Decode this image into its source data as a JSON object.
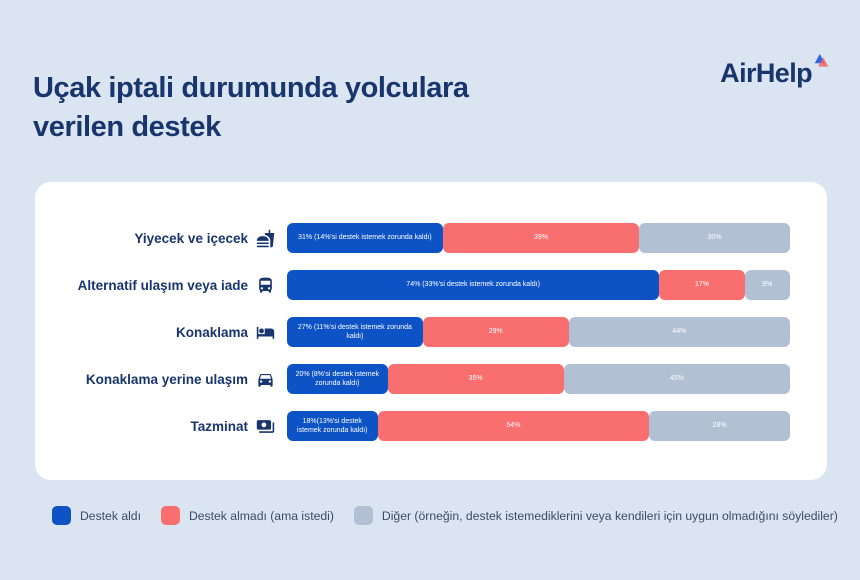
{
  "header": {
    "title": "Uçak iptali durumunda yolculara verilen destek",
    "brand": "AirHelp"
  },
  "colors": {
    "background": "#DBE5F1",
    "card": "#FFFFFF",
    "navy": "#19356E",
    "blue": "#0E53C6",
    "pink": "#F96F6F",
    "gray": "#B1C0D3",
    "legend_text": "#3C4B68"
  },
  "chart_data": {
    "type": "bar",
    "variant": "horizontal-stacked",
    "title": "Uçak iptali durumunda yolculara verilen destek",
    "unit": "%",
    "xlim": [
      0,
      100
    ],
    "grid": false,
    "legend_position": "bottom",
    "categories": [
      "Yiyecek ve içecek",
      "Alternatif ulaşım veya iade",
      "Konaklama",
      "Konaklama yerine ulaşım",
      "Tazminat"
    ],
    "category_icons": [
      "food-drink-icon",
      "bus-icon",
      "bed-icon",
      "car-icon",
      "banknote-icon"
    ],
    "series": [
      {
        "name": "Destek aldı",
        "color": "#0E53C6",
        "values": [
          31,
          74,
          27,
          20,
          18
        ],
        "bar_labels": [
          "31% (14%'si destek istemek zorunda kaldı)",
          "74% (33%'si destek istemek zorunda kaldı)",
          "27% (11%'si destek istemek zorunda kaldı)",
          "20% (8%'si destek istemek zorunda kaldı)",
          "18%(13%'si destek istemek zorunda kaldı)"
        ]
      },
      {
        "name": "Destek almadı (ama istedi)",
        "color": "#F96F6F",
        "values": [
          39,
          17,
          29,
          35,
          54
        ],
        "bar_labels": [
          "39%",
          "17%",
          "29%",
          "35%",
          "54%"
        ]
      },
      {
        "name": "Diğer (örneğin, destek istemediklerini veya kendileri için uygun olmadığını söylediler)",
        "color": "#B1C0D3",
        "values": [
          30,
          9,
          44,
          45,
          28
        ],
        "bar_labels": [
          "30%",
          "9%",
          "44%",
          "45%",
          "28%"
        ]
      }
    ]
  },
  "legend": {
    "items": [
      {
        "label": "Destek aldı",
        "color": "#0E53C6"
      },
      {
        "label": "Destek almadı (ama istedi)",
        "color": "#F96F6F"
      },
      {
        "label": "Diğer (örneğin, destek istemediklerini veya kendileri için uygun olmadığını söylediler)",
        "color": "#B1C0D3"
      }
    ]
  }
}
